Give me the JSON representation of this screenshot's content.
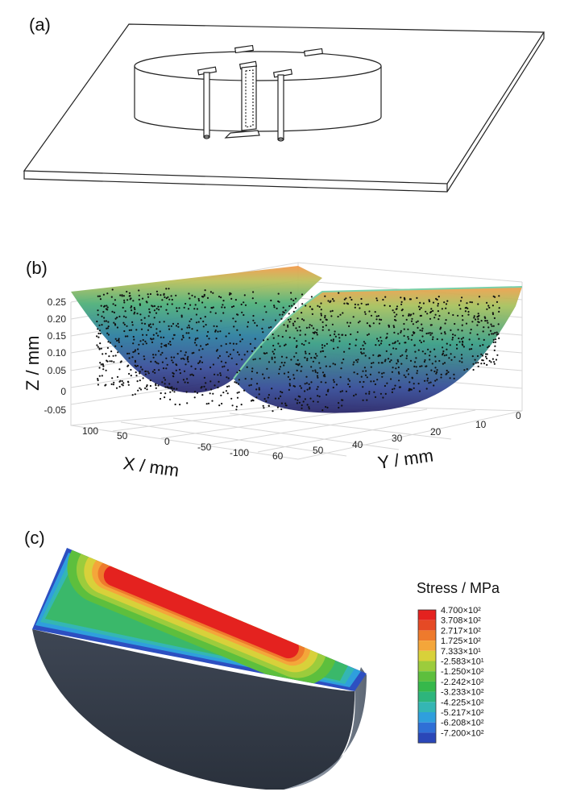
{
  "panels": {
    "a": {
      "label": "(a)"
    },
    "b": {
      "label": "(b)",
      "z_axis_title": "Z / mm",
      "x_axis_title": "X / mm",
      "y_axis_title": "Y / mm",
      "z_ticks": [
        "0.25",
        "0.20",
        "0.15",
        "0.10",
        "0.05",
        "0",
        "-0.05"
      ],
      "x_ticks": [
        "100",
        "50",
        "0",
        "-50",
        "-100"
      ],
      "y_ticks": [
        "60",
        "50",
        "40",
        "30",
        "20",
        "10",
        "0"
      ]
    },
    "c": {
      "label": "(c)",
      "legend_title": "Stress / MPa",
      "legend": [
        {
          "label": "4.700×10²",
          "color": "#e4221f"
        },
        {
          "label": "3.708×10²",
          "color": "#e54a25"
        },
        {
          "label": "2.717×10²",
          "color": "#ee7a2c"
        },
        {
          "label": "1.725×10²",
          "color": "#f4a63a"
        },
        {
          "label": "7.333×10¹",
          "color": "#d8d13a"
        },
        {
          "label": "-2.583×10¹",
          "color": "#9ccc3c"
        },
        {
          "label": "-1.250×10²",
          "color": "#5dbf3d"
        },
        {
          "label": "-2.242×10²",
          "color": "#36b84b"
        },
        {
          "label": "-3.233×10²",
          "color": "#2db57c"
        },
        {
          "label": "-4.225×10²",
          "color": "#34b6b4"
        },
        {
          "label": "-5.217×10²",
          "color": "#2f9fdd"
        },
        {
          "label": "-6.208×10²",
          "color": "#2f6fd6"
        },
        {
          "label": "-7.200×10²",
          "color": "#2a47b8"
        }
      ]
    }
  }
}
